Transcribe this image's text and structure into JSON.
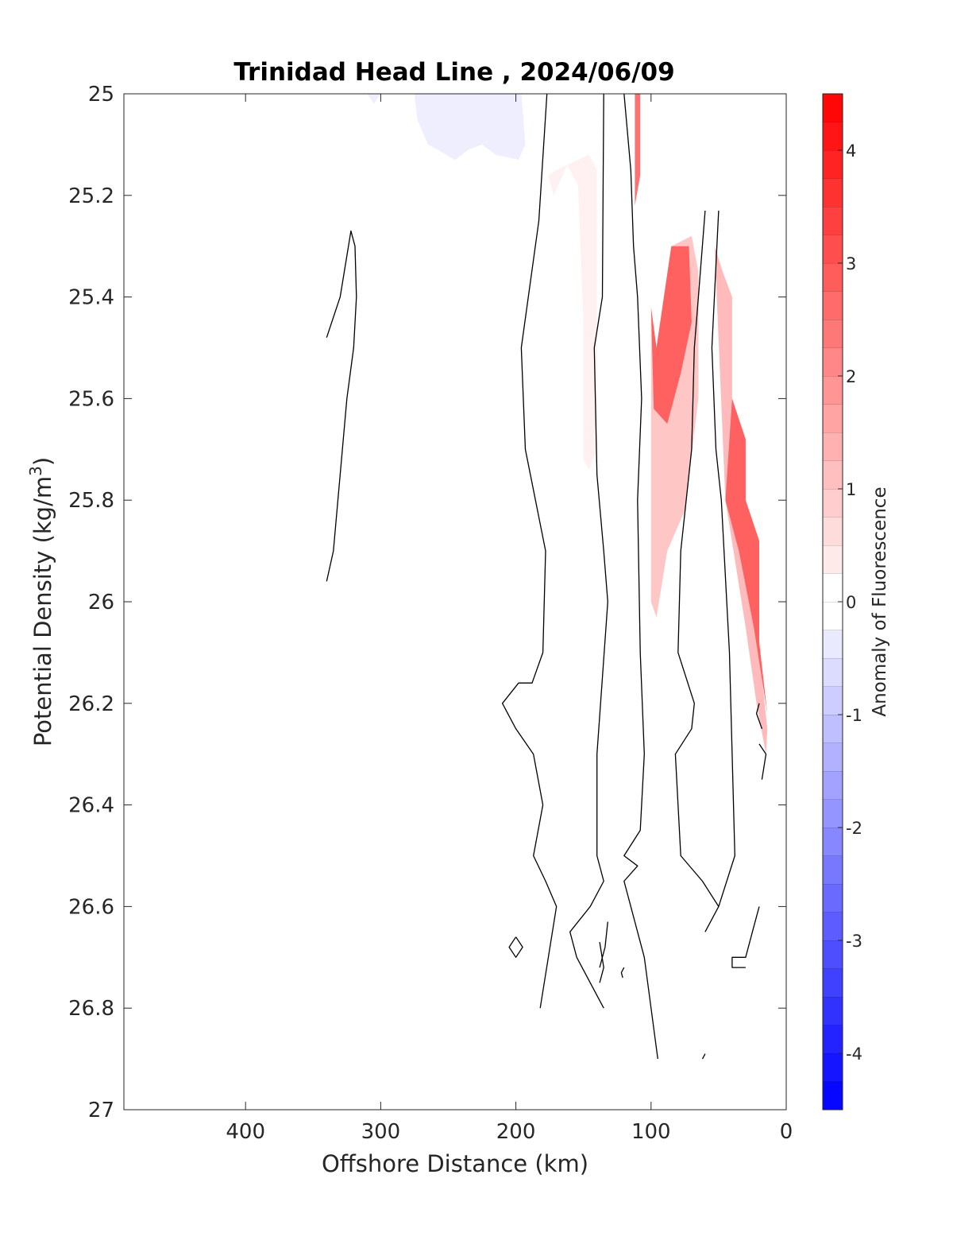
{
  "chart_data": {
    "type": "contour",
    "title": "Trinidad Head Line , 2024/06/09",
    "xlabel": "Offshore Distance (km)",
    "ylabel": "Potential Density (kg/m",
    "ylabel_superscript": "3",
    "ylabel_suffix": ")",
    "x_reversed": true,
    "y_reversed": true,
    "xlim": [
      0,
      490
    ],
    "ylim": [
      25,
      27
    ],
    "x_ticks": [
      400,
      300,
      200,
      100,
      0
    ],
    "x_tick_labels": [
      "400",
      "300",
      "200",
      "100",
      "0"
    ],
    "y_ticks": [
      25,
      25.2,
      25.4,
      25.6,
      25.8,
      26,
      26.2,
      26.4,
      26.6,
      26.8,
      27
    ],
    "y_tick_labels": [
      "25",
      "25.2",
      "25.4",
      "25.6",
      "25.8",
      "26",
      "26.2",
      "26.4",
      "26.6",
      "26.8",
      "27"
    ],
    "grid": false,
    "colorbar": {
      "label": "Anomaly of Fluorescence",
      "lim": [
        -4.5,
        4.5
      ],
      "ticks": [
        -4,
        -3,
        -2,
        -1,
        0,
        1,
        2,
        3,
        4
      ],
      "tick_labels": [
        "-4",
        "-3",
        "-2",
        "-1",
        "0",
        "1",
        "2",
        "3",
        "4"
      ],
      "step": 0.25,
      "colormap": "blue-white-red",
      "neg_color": "#0000ff",
      "pos_color": "#ff0000"
    },
    "filled_regions": [
      {
        "value": -0.3,
        "points": [
          [
            310,
            25
          ],
          [
            305,
            25.02
          ],
          [
            300,
            25
          ],
          [
            275,
            25
          ],
          [
            273,
            25.05
          ],
          [
            265,
            25.1
          ],
          [
            258,
            25.11
          ],
          [
            245,
            25.13
          ],
          [
            235,
            25.11
          ],
          [
            225,
            25.1
          ],
          [
            215,
            25.12
          ],
          [
            198,
            25.13
          ],
          [
            193,
            25.1
          ],
          [
            195,
            25.03
          ],
          [
            196,
            25
          ]
        ]
      },
      {
        "value": 0.25,
        "points": [
          [
            172,
            25.2
          ],
          [
            176,
            25.16
          ],
          [
            170,
            25.15
          ],
          [
            146,
            25.12
          ],
          [
            140,
            25.15
          ],
          [
            140,
            25.7
          ],
          [
            146,
            25.74
          ],
          [
            150,
            25.72
          ],
          [
            150,
            25.45
          ],
          [
            154,
            25.18
          ],
          [
            162,
            25.14
          ]
        ]
      },
      {
        "value": 2.5,
        "points": [
          [
            108,
            25
          ],
          [
            112,
            25
          ],
          [
            112,
            25.22
          ],
          [
            108,
            25.16
          ]
        ]
      },
      {
        "value": 1.0,
        "points": [
          [
            100,
            25.42
          ],
          [
            96,
            25.5
          ],
          [
            85,
            25.3
          ],
          [
            70,
            25.28
          ],
          [
            65,
            25.35
          ],
          [
            65,
            25.6
          ],
          [
            75,
            25.82
          ],
          [
            88,
            25.9
          ],
          [
            96,
            26.03
          ],
          [
            100,
            26
          ]
        ]
      },
      {
        "value": 2.8,
        "points": [
          [
            100,
            25.42
          ],
          [
            96,
            25.5
          ],
          [
            85,
            25.3
          ],
          [
            72,
            25.3
          ],
          [
            70,
            25.45
          ],
          [
            78,
            25.55
          ],
          [
            88,
            25.65
          ],
          [
            98,
            25.62
          ]
        ]
      },
      {
        "value": 1.2,
        "points": [
          [
            53,
            25.3
          ],
          [
            47,
            25.35
          ],
          [
            40,
            25.4
          ],
          [
            40,
            25.6
          ],
          [
            30,
            25.7
          ],
          [
            30,
            25.85
          ],
          [
            20,
            25.9
          ],
          [
            20,
            26.1
          ],
          [
            14,
            26.25
          ],
          [
            15,
            26.3
          ],
          [
            22,
            26.2
          ],
          [
            30,
            26.05
          ],
          [
            45,
            25.8
          ]
        ]
      },
      {
        "value": 2.8,
        "points": [
          [
            40,
            25.6
          ],
          [
            30,
            25.68
          ],
          [
            30,
            25.8
          ],
          [
            20,
            25.88
          ],
          [
            20,
            26.08
          ],
          [
            14,
            26.22
          ],
          [
            24,
            26.05
          ],
          [
            35,
            25.9
          ],
          [
            45,
            25.8
          ]
        ]
      }
    ],
    "contour_lines": [
      [
        [
          340,
          25.48
        ],
        [
          330,
          25.4
        ],
        [
          322,
          25.27
        ],
        [
          319,
          25.3
        ],
        [
          318,
          25.4
        ],
        [
          320,
          25.5
        ],
        [
          325,
          25.6
        ],
        [
          330,
          25.75
        ],
        [
          335,
          25.9
        ],
        [
          340,
          25.96
        ]
      ],
      [
        [
          177,
          25
        ],
        [
          183,
          25.25
        ],
        [
          196,
          25.5
        ],
        [
          193,
          25.7
        ],
        [
          178,
          25.9
        ],
        [
          180,
          26.1
        ],
        [
          188,
          26.16
        ],
        [
          198,
          26.16
        ],
        [
          210,
          26.2
        ],
        [
          200,
          26.25
        ],
        [
          187,
          26.3
        ],
        [
          180,
          26.4
        ],
        [
          187,
          26.5
        ],
        [
          178,
          26.55
        ],
        [
          170,
          26.6
        ],
        [
          182,
          26.8
        ]
      ],
      [
        [
          135,
          25
        ],
        [
          136,
          25.4
        ],
        [
          142,
          25.5
        ],
        [
          140,
          25.75
        ],
        [
          135,
          25.9
        ],
        [
          132,
          26
        ],
        [
          140,
          26.3
        ],
        [
          140,
          26.5
        ],
        [
          135,
          26.55
        ],
        [
          145,
          26.6
        ],
        [
          160,
          26.65
        ],
        [
          155,
          26.7
        ],
        [
          145,
          26.75
        ],
        [
          135,
          26.8
        ]
      ],
      [
        [
          132,
          26.63
        ],
        [
          134,
          26.68
        ],
        [
          138,
          26.72
        ]
      ],
      [
        [
          138,
          26.67
        ],
        [
          135,
          26.72
        ],
        [
          138,
          26.75
        ]
      ],
      [
        [
          200,
          26.66
        ],
        [
          205,
          26.68
        ],
        [
          200,
          26.7
        ],
        [
          195,
          26.68
        ],
        [
          200,
          26.66
        ]
      ],
      [
        [
          120,
          25
        ],
        [
          115,
          25.15
        ],
        [
          113,
          25.3
        ],
        [
          110,
          25.4
        ],
        [
          107,
          25.6
        ],
        [
          110,
          25.8
        ],
        [
          108,
          26.1
        ],
        [
          105,
          26.3
        ],
        [
          108,
          26.45
        ],
        [
          120,
          26.5
        ],
        [
          110,
          26.52
        ],
        [
          120,
          26.55
        ],
        [
          105,
          26.7
        ],
        [
          100,
          26.8
        ],
        [
          95,
          26.9
        ]
      ],
      [
        [
          120,
          26.72
        ],
        [
          122,
          26.73
        ],
        [
          121,
          26.74
        ]
      ],
      [
        [
          60,
          25.23
        ],
        [
          65,
          25.4
        ],
        [
          68,
          25.5
        ],
        [
          70,
          25.7
        ],
        [
          78,
          25.9
        ],
        [
          80,
          26.1
        ],
        [
          68,
          26.2
        ],
        [
          70,
          26.25
        ],
        [
          82,
          26.3
        ],
        [
          78,
          26.5
        ],
        [
          62,
          26.55
        ],
        [
          50,
          26.6
        ]
      ],
      [
        [
          50,
          25.23
        ],
        [
          55,
          25.5
        ],
        [
          52,
          25.7
        ],
        [
          48,
          25.8
        ],
        [
          42,
          26.1
        ],
        [
          40,
          26.3
        ],
        [
          38,
          26.5
        ],
        [
          50,
          26.6
        ],
        [
          60,
          26.65
        ]
      ],
      [
        [
          20,
          26.6
        ],
        [
          25,
          26.65
        ],
        [
          30,
          26.7
        ],
        [
          40,
          26.7
        ],
        [
          40,
          26.72
        ],
        [
          30,
          26.72
        ]
      ],
      [
        [
          20,
          26.2
        ],
        [
          22,
          26.22
        ],
        [
          18,
          26.25
        ]
      ],
      [
        [
          18,
          26.35
        ],
        [
          15,
          26.3
        ],
        [
          20,
          26.28
        ]
      ],
      [
        [
          62,
          26.9
        ],
        [
          60,
          26.89
        ]
      ]
    ]
  }
}
